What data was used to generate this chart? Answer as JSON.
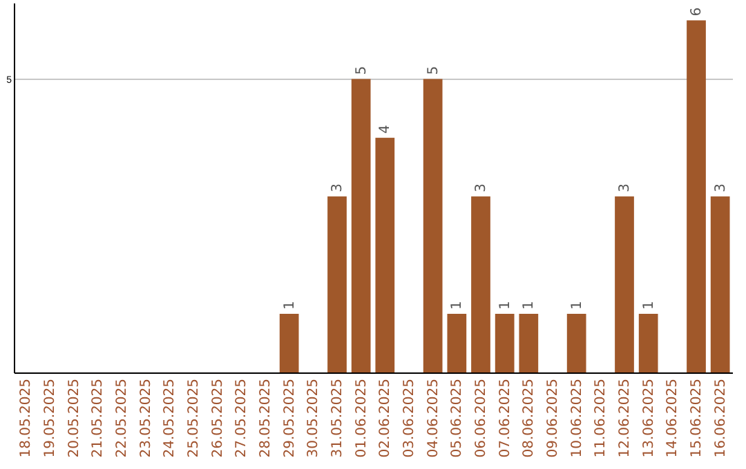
{
  "chart_data": {
    "type": "bar",
    "categories": [
      "18.05.2025",
      "19.05.2025",
      "20.05.2025",
      "21.05.2025",
      "22.05.2025",
      "23.05.2025",
      "24.05.2025",
      "25.05.2025",
      "26.05.2025",
      "27.05.2025",
      "28.05.2025",
      "29.05.2025",
      "30.05.2025",
      "31.05.2025",
      "01.06.2025",
      "02.06.2025",
      "03.06.2025",
      "04.06.2025",
      "05.06.2025",
      "06.06.2025",
      "07.06.2025",
      "08.06.2025",
      "09.06.2025",
      "10.06.2025",
      "11.06.2025",
      "12.06.2025",
      "13.06.2025",
      "14.06.2025",
      "15.06.2025",
      "16.06.2025"
    ],
    "values": [
      0,
      0,
      0,
      0,
      0,
      0,
      0,
      0,
      0,
      0,
      0,
      1,
      0,
      3,
      5,
      4,
      0,
      5,
      1,
      3,
      1,
      1,
      0,
      1,
      0,
      3,
      1,
      0,
      6,
      3
    ],
    "value_labels": [
      null,
      null,
      null,
      null,
      null,
      null,
      null,
      null,
      null,
      null,
      null,
      "1",
      null,
      "3",
      "5",
      "4",
      null,
      "5",
      "1",
      "3",
      "1",
      "1",
      null,
      "1",
      null,
      "3",
      "1",
      null,
      "6",
      "3"
    ],
    "color": "#a0582a",
    "ylim": [
      0,
      6.3
    ],
    "yticks": [
      5
    ],
    "grid": "y"
  }
}
